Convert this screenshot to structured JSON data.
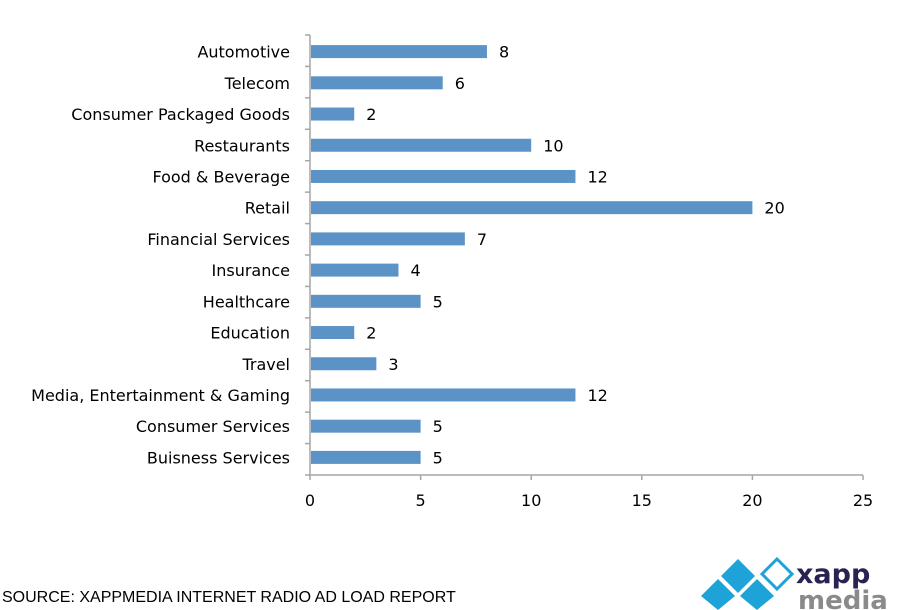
{
  "chart_data": {
    "type": "bar",
    "orientation": "horizontal",
    "categories": [
      "Automotive",
      "Telecom",
      "Consumer Packaged Goods",
      "Restaurants",
      "Food & Beverage",
      "Retail",
      "Financial Services",
      "Insurance",
      "Healthcare",
      "Education",
      "Travel",
      "Media, Entertainment & Gaming",
      "Consumer Services",
      "Buisness Services"
    ],
    "values": [
      8,
      6,
      2,
      10,
      12,
      20,
      7,
      4,
      5,
      2,
      3,
      12,
      5,
      5
    ],
    "xlim": [
      0,
      25
    ],
    "xticks": [
      "0",
      "5",
      "10",
      "15",
      "20",
      "25"
    ],
    "xlabel": "",
    "ylabel": "",
    "title": "",
    "grid": false,
    "data_labels": true,
    "bar_color": "#5b93c7"
  },
  "footer": {
    "source": "SOURCE: XAPPMEDIA INTERNET RADIO AD LOAD REPORT"
  },
  "logo": {
    "text_top": "xapp",
    "text_bottom": "media",
    "colors": {
      "diamond": "#1ea3d8",
      "top": "#2a2352",
      "bottom": "#8a8a8a"
    }
  }
}
